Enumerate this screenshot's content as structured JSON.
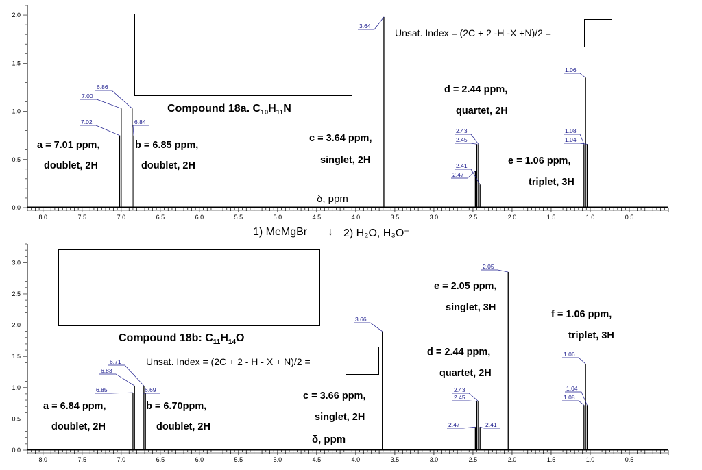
{
  "colors": {
    "peak_label": "#1a1a8c",
    "axis": "#000000",
    "trace": "#000000"
  },
  "top_panel": {
    "compound_title": "Compound 18a. C10H11N",
    "unsat_text": "Unsat. Index = (2C + 2 -H -X +N)/2 =",
    "delta_label": "δ, ppm",
    "annotations": {
      "a1": "a = 7.01 ppm,",
      "a2": "doublet, 2H",
      "b1": "b = 6.85 ppm,",
      "b2": "doublet, 2H",
      "c1": "c = 3.64 ppm,",
      "c2": "singlet, 2H",
      "d1": "d = 2.44 ppm,",
      "d2": "quartet, 2H",
      "e1": "e = 1.06 ppm,",
      "e2": "triplet, 3H"
    }
  },
  "reaction_arrow": {
    "step1": "1) MeMgBr",
    "arrow": "↓",
    "step2": "2) H₂O, H₃O⁺"
  },
  "bottom_panel": {
    "compound_title": "Compound 18b: C11H14O",
    "unsat_text": "Unsat. Index = (2C + 2 - H - X + N)/2 =",
    "delta_label": "δ, ppm",
    "annotations": {
      "a1": "a = 6.84 ppm,",
      "a2": "doublet, 2H",
      "b1": "b = 6.70ppm,",
      "b2": "doublet, 2H",
      "c1": "c = 3.66 ppm,",
      "c2": "singlet, 2H",
      "d1": "d = 2.44 ppm,",
      "d2": "quartet, 2H",
      "e1": "e = 2.05 ppm,",
      "e2": "singlet, 3H",
      "f1": "f = 1.06 ppm,",
      "f2": "triplet, 3H"
    }
  },
  "chart_data": [
    {
      "type": "line",
      "title": "",
      "xlabel": "δ, ppm",
      "ylabel": "",
      "xlim": [
        8.2,
        0.0
      ],
      "ylim": [
        0.0,
        2.1
      ],
      "x_ticks": [
        "8.0",
        "7.5",
        "7.0",
        "6.5",
        "6.0",
        "5.5",
        "5.0",
        "4.5",
        "4.0",
        "3.5",
        "3.0",
        "2.5",
        "2.0",
        "1.5",
        "1.0",
        "0.5"
      ],
      "y_ticks": [
        "0.0",
        "0.5",
        "1.0",
        "1.5",
        "2.0"
      ],
      "peaks": [
        {
          "ppm": 7.02,
          "h": 0.75,
          "label": "7.02"
        },
        {
          "ppm": 7.0,
          "h": 1.03,
          "label": "7.00"
        },
        {
          "ppm": 6.86,
          "h": 1.03,
          "label": "6.86"
        },
        {
          "ppm": 6.84,
          "h": 0.75,
          "label": "6.84"
        },
        {
          "ppm": 3.64,
          "h": 1.98,
          "label": "3.64"
        },
        {
          "ppm": 2.47,
          "h": 0.38,
          "label": "2.47"
        },
        {
          "ppm": 2.45,
          "h": 0.66,
          "label": "2.45"
        },
        {
          "ppm": 2.43,
          "h": 0.66,
          "label": "2.43"
        },
        {
          "ppm": 2.41,
          "h": 0.24,
          "label": "2.41"
        },
        {
          "ppm": 1.08,
          "h": 0.66,
          "label": "1.08"
        },
        {
          "ppm": 1.06,
          "h": 1.35,
          "label": "1.06"
        },
        {
          "ppm": 1.04,
          "h": 0.66,
          "label": "1.04"
        }
      ]
    },
    {
      "type": "line",
      "title": "",
      "xlabel": "δ, ppm",
      "ylabel": "",
      "xlim": [
        8.2,
        0.0
      ],
      "ylim": [
        0.0,
        3.3
      ],
      "x_ticks": [
        "8.0",
        "7.5",
        "7.0",
        "6.5",
        "6.0",
        "5.5",
        "5.0",
        "4.5",
        "4.0",
        "3.5",
        "3.0",
        "2.5",
        "2.0",
        "1.5",
        "1.0",
        "0.5"
      ],
      "y_ticks": [
        "0.0",
        "0.5",
        "1.0",
        "1.5",
        "2.0",
        "2.5",
        "3.0"
      ],
      "peaks": [
        {
          "ppm": 6.85,
          "h": 0.92,
          "label": "6.85"
        },
        {
          "ppm": 6.83,
          "h": 1.03,
          "label": "6.83"
        },
        {
          "ppm": 6.71,
          "h": 1.03,
          "label": "6.71"
        },
        {
          "ppm": 6.69,
          "h": 0.92,
          "label": "6.69"
        },
        {
          "ppm": 3.66,
          "h": 1.9,
          "label": "3.66"
        },
        {
          "ppm": 2.47,
          "h": 0.37,
          "label": "2.47"
        },
        {
          "ppm": 2.45,
          "h": 0.78,
          "label": "2.45"
        },
        {
          "ppm": 2.43,
          "h": 0.78,
          "label": "2.43"
        },
        {
          "ppm": 2.41,
          "h": 0.37,
          "label": "2.41"
        },
        {
          "ppm": 2.05,
          "h": 2.85,
          "label": "2.05"
        },
        {
          "ppm": 1.08,
          "h": 0.72,
          "label": "1.08"
        },
        {
          "ppm": 1.06,
          "h": 1.38,
          "label": "1.06"
        },
        {
          "ppm": 1.04,
          "h": 0.72,
          "label": "1.04"
        }
      ]
    }
  ]
}
